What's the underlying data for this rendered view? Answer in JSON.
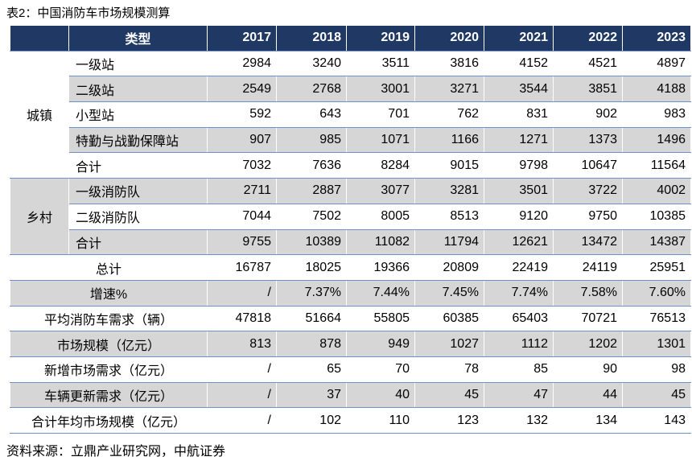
{
  "header": {
    "title": "表2：中国消防车市场规模测算"
  },
  "table": {
    "columns": [
      "类型",
      "2017",
      "2018",
      "2019",
      "2020",
      "2021",
      "2022",
      "2023"
    ],
    "groups": [
      {
        "label": "城镇",
        "rows": [
          {
            "label": "一级站",
            "values": [
              2984,
              3240,
              3511,
              3816,
              4152,
              4521,
              4897
            ]
          },
          {
            "label": "二级站",
            "values": [
              2549,
              2768,
              3001,
              3271,
              3544,
              3851,
              4188
            ]
          },
          {
            "label": "小型站",
            "values": [
              592,
              643,
              701,
              762,
              831,
              902,
              983
            ]
          },
          {
            "label": "特勤与战勤保障站",
            "values": [
              907,
              985,
              1071,
              1166,
              1271,
              1373,
              1496
            ]
          },
          {
            "label": "合计",
            "values": [
              7032,
              7636,
              8284,
              9015,
              9798,
              10647,
              11564
            ]
          }
        ]
      },
      {
        "label": "乡村",
        "rows": [
          {
            "label": "一级消防队",
            "values": [
              2711,
              2887,
              3077,
              3281,
              3501,
              3722,
              4002
            ]
          },
          {
            "label": "二级消防队",
            "values": [
              7044,
              7502,
              8005,
              8513,
              9120,
              9750,
              10385
            ]
          },
          {
            "label": "合计",
            "values": [
              9755,
              10389,
              11082,
              11794,
              12621,
              13472,
              14387
            ]
          }
        ]
      }
    ],
    "summary_rows": [
      {
        "label": "总计",
        "values": [
          16787,
          18025,
          19366,
          20809,
          22419,
          24119,
          25951
        ]
      },
      {
        "label": "增速%",
        "values": [
          "/",
          "7.37%",
          "7.44%",
          "7.45%",
          "7.74%",
          "7.58%",
          "7.60%"
        ]
      },
      {
        "label": "平均消防车需求（辆）",
        "values": [
          47818,
          51664,
          55805,
          60385,
          65403,
          70721,
          76513
        ]
      },
      {
        "label": "市场规模（亿元）",
        "values": [
          813,
          878,
          949,
          1027,
          1112,
          1202,
          1301
        ]
      },
      {
        "label": "新增市场需求（亿元）",
        "values": [
          "/",
          65,
          70,
          78,
          85,
          90,
          98
        ]
      },
      {
        "label": "车辆更新需求（亿元）",
        "values": [
          "/",
          37,
          40,
          45,
          47,
          44,
          45
        ]
      },
      {
        "label": "合计年均市场规模（亿元）",
        "values": [
          "/",
          102,
          110,
          123,
          132,
          134,
          143
        ]
      }
    ]
  },
  "footer": {
    "source": "资料来源：立鼎产业研究网，中航证券"
  }
}
